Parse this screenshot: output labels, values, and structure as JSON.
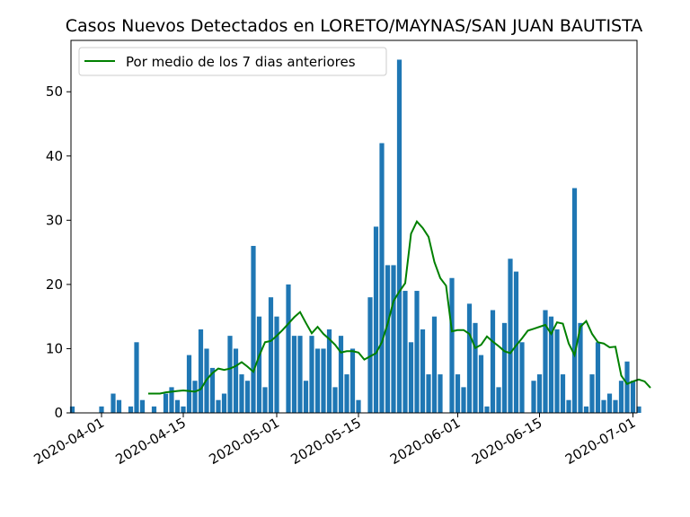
{
  "chart_data": {
    "type": "bar",
    "title": "Casos Nuevos Detectados en LORETO/MAYNAS/SAN JUAN BAUTISTA",
    "xlabel": "",
    "ylabel": "",
    "x_start": "2020-03-27",
    "ylim": [
      0,
      58
    ],
    "yticks": [
      0,
      10,
      20,
      30,
      40,
      50
    ],
    "xticks": [
      "2020-04-01",
      "2020-04-15",
      "2020-05-01",
      "2020-05-15",
      "2020-06-01",
      "2020-06-15",
      "2020-07-01"
    ],
    "grid": false,
    "legend_position": "top-left",
    "bar_color": "#1f77b4",
    "line_color": "#008000",
    "values": [
      1,
      0,
      0,
      0,
      0,
      1,
      0,
      3,
      2,
      0,
      1,
      11,
      2,
      0,
      1,
      0,
      3,
      4,
      2,
      1,
      9,
      5,
      13,
      10,
      7,
      2,
      3,
      12,
      10,
      6,
      5,
      26,
      15,
      4,
      18,
      15,
      0,
      20,
      12,
      12,
      5,
      12,
      10,
      10,
      13,
      4,
      12,
      6,
      10,
      2,
      0,
      18,
      29,
      42,
      23,
      23,
      55,
      19,
      11,
      19,
      13,
      6,
      15,
      6,
      0,
      21,
      6,
      4,
      17,
      14,
      9,
      1,
      16,
      4,
      14,
      24,
      22,
      11,
      0,
      5,
      6,
      16,
      15,
      13,
      6,
      2,
      35,
      14,
      1,
      6,
      11,
      2,
      3,
      2,
      5,
      8,
      5,
      1
    ],
    "series": [
      {
        "name": "Por medio de los 7 dias anteriores",
        "type": "line",
        "start_index": 13,
        "values": [
          3.0,
          3.0,
          3.0,
          3.2,
          3.3,
          3.4,
          3.5,
          3.4,
          3.3,
          3.7,
          5.2,
          6.2,
          6.9,
          6.7,
          6.9,
          7.3,
          7.9,
          7.2,
          6.4,
          8.9,
          11.0,
          11.2,
          12.0,
          12.9,
          13.9,
          14.9,
          15.7,
          14.0,
          12.4,
          13.4,
          12.3,
          11.5,
          10.6,
          9.4,
          9.6,
          9.6,
          9.4,
          8.3,
          8.8,
          9.3,
          11.0,
          13.9,
          17.4,
          18.9,
          20.2,
          27.9,
          29.8,
          28.8,
          27.4,
          23.5,
          21.0,
          19.8,
          12.7,
          12.9,
          12.9,
          12.3,
          10.1,
          10.6,
          11.9,
          11.1,
          10.4,
          9.6,
          9.3,
          10.5,
          11.6,
          12.8,
          13.1,
          13.4,
          13.7,
          12.3,
          14.1,
          13.9,
          10.8,
          9.0,
          13.4,
          14.3,
          12.3,
          11.0,
          10.8,
          10.2,
          10.3,
          5.8,
          4.5,
          4.9,
          5.2,
          4.9,
          3.9
        ]
      }
    ]
  }
}
